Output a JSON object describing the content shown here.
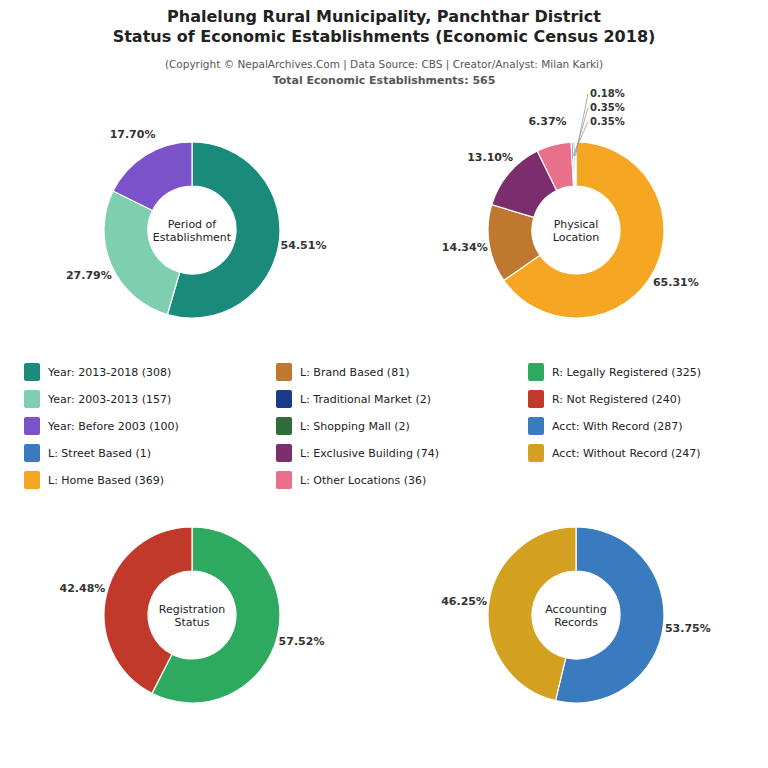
{
  "title": "Phalelung Rural Municipality, Panchthar District\nStatus of Economic Establishments (Economic Census 2018)",
  "subtitle": "(Copyright © NepalArchives.Com | Data Source: CBS | Creator/Analyst: Milan Karki)",
  "annotations": [
    "Total Economic Establishments: 565"
  ],
  "legend_entries": [
    {
      "name": "Year: 2013-2018 (308)",
      "color": "#1a8a7a"
    },
    {
      "name": "Year: 2003-2013 (157)",
      "color": "#7ecfb0"
    },
    {
      "name": "Year: Before 2003 (100)",
      "color": "#7b52c9"
    },
    {
      "name": "L: Street Based (1)",
      "color": "#3a7bbf"
    },
    {
      "name": "L: Home Based (369)",
      "color": "#f5a623"
    },
    {
      "name": "L: Brand Based (81)",
      "color": "#c07830"
    },
    {
      "name": "L: Traditional Market (2)",
      "color": "#1a3a8a"
    },
    {
      "name": "L: Shopping Mall (2)",
      "color": "#2d6e3a"
    },
    {
      "name": "L: Exclusive Building (74)",
      "color": "#7b2d6e"
    },
    {
      "name": "L: Other Locations (36)",
      "color": "#e8708a"
    },
    {
      "name": "R: Legally Registered (325)",
      "color": "#2eaa60"
    },
    {
      "name": "R: Not Registered (240)",
      "color": "#c0392b"
    },
    {
      "name": "Acct: With Record (287)",
      "color": "#3a7bbf"
    },
    {
      "name": "Acct: Without Record (247)",
      "color": "#d4a020"
    }
  ],
  "chart_data": [
    {
      "type": "pie",
      "title": "Period of\nEstablishment",
      "values": [
        54.51,
        27.79,
        17.7
      ],
      "value_labels": [
        "54.51%",
        "27.79%",
        "17.70%"
      ],
      "colors": [
        "#1a8a7a",
        "#7ecfb0",
        "#7b52c9"
      ],
      "data_labels": true
    },
    {
      "type": "pie",
      "title": "Physical\nLocation",
      "values": [
        65.31,
        14.34,
        13.1,
        6.37,
        0.35,
        0.35,
        0.18
      ],
      "value_labels": [
        "65.31%",
        "14.34%",
        "13.10%",
        "6.37%",
        "0.35%",
        "0.35%",
        "0.18%"
      ],
      "colors": [
        "#f5a623",
        "#c07830",
        "#7b2d6e",
        "#e8708a",
        "#1a3a8a",
        "#2d6e3a",
        "#5bc8d0"
      ],
      "data_labels": true
    },
    {
      "type": "pie",
      "title": "Registration\nStatus",
      "values": [
        57.52,
        42.48
      ],
      "value_labels": [
        "57.52%",
        "42.48%"
      ],
      "colors": [
        "#2eaa60",
        "#c0392b"
      ],
      "data_labels": true
    },
    {
      "type": "pie",
      "title": "Accounting\nRecords",
      "values": [
        53.75,
        46.25
      ],
      "value_labels": [
        "53.75%",
        "46.25%"
      ],
      "colors": [
        "#3a7bbf",
        "#d4a020"
      ],
      "data_labels": true
    }
  ]
}
